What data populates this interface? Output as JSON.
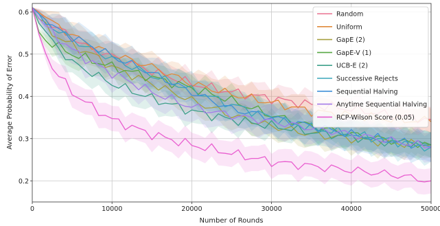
{
  "chart_data": {
    "type": "line",
    "title": "",
    "xlabel": "Number of Rounds",
    "ylabel": "Average Probability of Error",
    "xlim": [
      0,
      50000
    ],
    "ylim": [
      0.15,
      0.62
    ],
    "x_ticks": [
      0,
      10000,
      20000,
      30000,
      40000,
      50000
    ],
    "x_tick_labels": [
      "0",
      "10000",
      "20000",
      "30000",
      "40000",
      "50000"
    ],
    "y_ticks": [
      0.2,
      0.3,
      0.4,
      0.5,
      0.6
    ],
    "y_tick_labels": [
      "0.2",
      "0.3",
      "0.4",
      "0.5",
      "0.6"
    ],
    "grid": true,
    "legend_position": "top-right",
    "x": [
      0,
      1000,
      2500,
      5000,
      7500,
      10000,
      15000,
      20000,
      25000,
      30000,
      35000,
      40000,
      45000,
      50000
    ],
    "series": [
      {
        "name": "Random",
        "color": "#e8708f",
        "band": 0.03,
        "values": [
          0.61,
          0.595,
          0.57,
          0.54,
          0.51,
          0.495,
          0.46,
          0.43,
          0.41,
          0.395,
          0.38,
          0.37,
          0.355,
          0.345
        ]
      },
      {
        "name": "Uniform",
        "color": "#e08a3c",
        "band": 0.03,
        "values": [
          0.61,
          0.6,
          0.575,
          0.545,
          0.52,
          0.5,
          0.47,
          0.43,
          0.405,
          0.385,
          0.365,
          0.355,
          0.345,
          0.34
        ]
      },
      {
        "name": "GapE (2)",
        "color": "#a7a040",
        "band": 0.03,
        "values": [
          0.61,
          0.58,
          0.55,
          0.52,
          0.5,
          0.47,
          0.43,
          0.39,
          0.355,
          0.33,
          0.31,
          0.3,
          0.29,
          0.285
        ]
      },
      {
        "name": "GapE-V (1)",
        "color": "#58a845",
        "band": 0.03,
        "values": [
          0.61,
          0.54,
          0.525,
          0.5,
          0.485,
          0.47,
          0.445,
          0.42,
          0.39,
          0.355,
          0.33,
          0.31,
          0.295,
          0.285
        ]
      },
      {
        "name": "UCB-E (2)",
        "color": "#3ea08a",
        "band": 0.03,
        "values": [
          0.61,
          0.57,
          0.53,
          0.48,
          0.455,
          0.43,
          0.395,
          0.365,
          0.345,
          0.33,
          0.315,
          0.305,
          0.29,
          0.285
        ]
      },
      {
        "name": "Successive Rejects",
        "color": "#3aa5ba",
        "band": 0.035,
        "values": [
          0.61,
          0.59,
          0.565,
          0.535,
          0.51,
          0.49,
          0.45,
          0.415,
          0.38,
          0.35,
          0.325,
          0.31,
          0.295,
          0.28
        ]
      },
      {
        "name": "Sequential Halving",
        "color": "#3f8fd8",
        "band": 0.035,
        "values": [
          0.61,
          0.59,
          0.565,
          0.54,
          0.52,
          0.495,
          0.455,
          0.41,
          0.37,
          0.35,
          0.33,
          0.31,
          0.295,
          0.28
        ]
      },
      {
        "name": "Anytime Sequential Halving",
        "color": "#a47be8",
        "band": 0.035,
        "values": [
          0.61,
          0.58,
          0.55,
          0.51,
          0.48,
          0.455,
          0.41,
          0.375,
          0.355,
          0.34,
          0.325,
          0.31,
          0.295,
          0.28
        ]
      },
      {
        "name": "RCP-Wilson Score (0.05)",
        "color": "#e95fd0",
        "band": 0.03,
        "values": [
          0.61,
          0.53,
          0.47,
          0.41,
          0.375,
          0.345,
          0.31,
          0.285,
          0.265,
          0.245,
          0.235,
          0.225,
          0.215,
          0.2
        ]
      }
    ]
  }
}
